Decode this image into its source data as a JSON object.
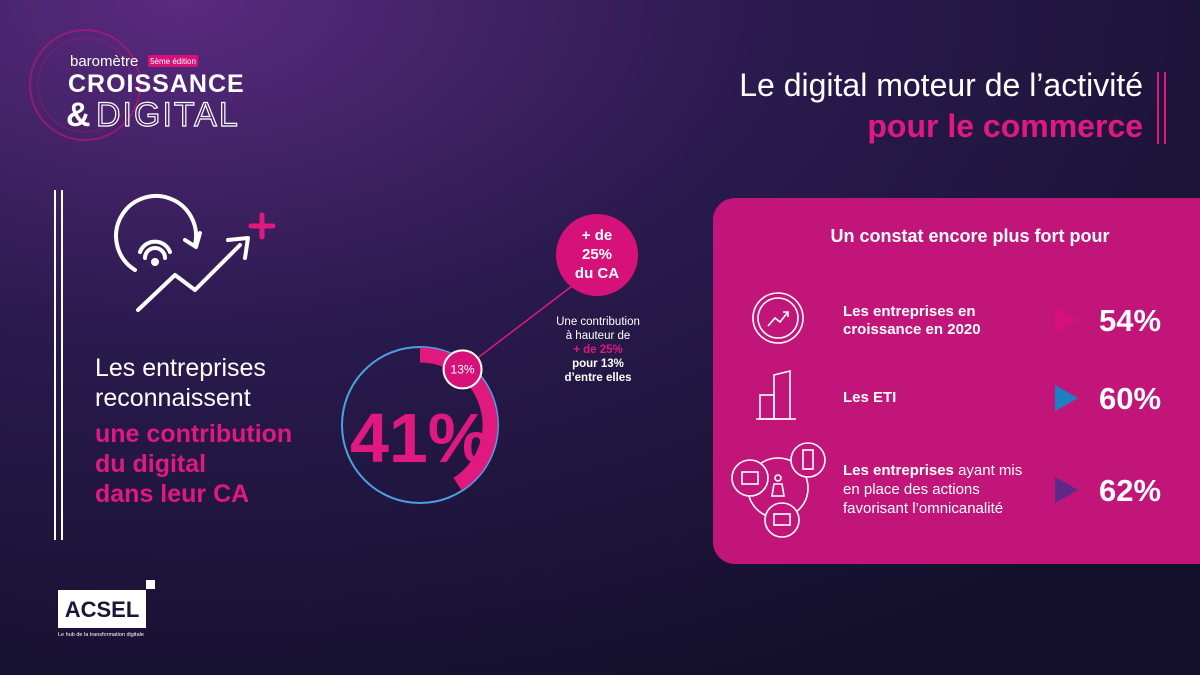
{
  "logo": {
    "prefix": "baromètre",
    "edition": "5ème édition",
    "line1": "CROISSANCE",
    "amp": "&",
    "line2": "DIGITAL"
  },
  "title": {
    "line1": "Le digital moteur de l’activité",
    "line2": "pour le commerce"
  },
  "left": {
    "lines": [
      "Les entreprises",
      "reconnaissent"
    ],
    "highlight": [
      "une contribution",
      "du digital",
      "dans leur CA"
    ]
  },
  "donut": {
    "value": 41,
    "value_label": "41%",
    "segment": 13,
    "segment_label": "13%",
    "callout": [
      "+ de",
      "25%",
      "du CA"
    ],
    "note": [
      "Une contribution",
      "à hauteur de",
      "+ de 25%",
      "pour 13%",
      "d’entre elles"
    ]
  },
  "panel": {
    "heading": "Un constat encore plus fort pour",
    "items": [
      {
        "label": [
          "Les entreprises en",
          "croissance en 2020"
        ],
        "value": 54,
        "value_label": "54%",
        "color": "#d6127a"
      },
      {
        "label": [
          "Les ETI"
        ],
        "value": 60,
        "value_label": "60%",
        "color": "#1d7fc4"
      },
      {
        "label_bold": "Les entreprises",
        "label": [
          "ayant mis",
          "en place des actions",
          "favorisant l’omnicanalité"
        ],
        "value": 62,
        "value_label": "62%",
        "color": "#5a2a86"
      }
    ]
  },
  "footer": {
    "brand": "ACSEL",
    "tagline": "Le hub de la transformation digitale"
  }
}
